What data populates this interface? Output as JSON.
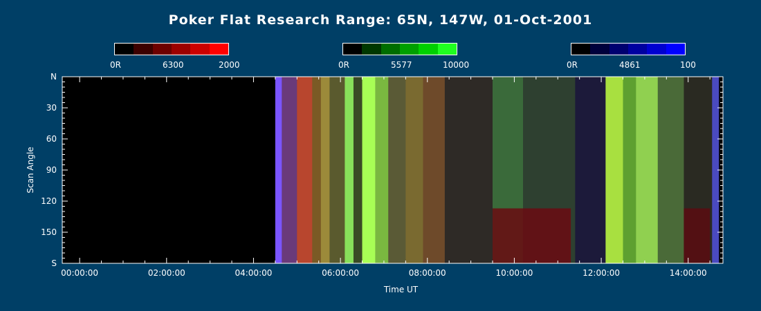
{
  "title": "Poker Flat Research Range: 65N, 147W, 01-Oct-2001",
  "colors": {
    "background": "#003f66",
    "text": "#ffffff"
  },
  "colorbars": [
    {
      "min_label": "0R",
      "wavelength_label": "6300",
      "max_label": "2000",
      "steps": [
        "#000000",
        "#3d0000",
        "#6e0000",
        "#9c0000",
        "#cc0000",
        "#ff0000"
      ]
    },
    {
      "min_label": "0R",
      "wavelength_label": "5577",
      "max_label": "10000",
      "steps": [
        "#000000",
        "#003800",
        "#006e00",
        "#00a000",
        "#00d000",
        "#20ff20"
      ]
    },
    {
      "min_label": "0R",
      "wavelength_label": "4861",
      "max_label": "100",
      "steps": [
        "#000000",
        "#00003c",
        "#000070",
        "#0000a0",
        "#0000d0",
        "#0000ff"
      ]
    }
  ],
  "chart_data": {
    "type": "heatmap",
    "title": "Poker Flat Research Range: 65N, 147W, 01-Oct-2001",
    "xlabel": "Time UT",
    "ylabel": "Scan Angle",
    "x_ticks": [
      "00:00:00",
      "02:00:00",
      "04:00:00",
      "06:00:00",
      "08:00:00",
      "10:00:00",
      "12:00:00",
      "14:00:00"
    ],
    "y_ticks": [
      "N",
      "30",
      "60",
      "90",
      "120",
      "150",
      "S"
    ],
    "xlim_hours": [
      -0.4,
      14.8
    ],
    "ylim_deg": [
      0,
      180
    ],
    "data_start_hour": 4.5,
    "data_end_hour": 14.7,
    "bands": [
      {
        "start": 4.5,
        "end": 4.65,
        "color": "#7a55ff"
      },
      {
        "start": 4.65,
        "end": 5.0,
        "color": "#6a3a7a"
      },
      {
        "start": 5.0,
        "end": 5.35,
        "color": "#b8462e"
      },
      {
        "start": 5.35,
        "end": 5.55,
        "color": "#7a5a25"
      },
      {
        "start": 5.55,
        "end": 5.75,
        "color": "#9c8a3a"
      },
      {
        "start": 5.75,
        "end": 6.1,
        "color": "#5a5a2e"
      },
      {
        "start": 6.1,
        "end": 6.3,
        "color": "#88e05a"
      },
      {
        "start": 6.3,
        "end": 6.5,
        "color": "#3a4a25"
      },
      {
        "start": 6.5,
        "end": 6.8,
        "color": "#a8ff55"
      },
      {
        "start": 6.8,
        "end": 7.1,
        "color": "#7ab840"
      },
      {
        "start": 7.1,
        "end": 7.5,
        "color": "#5a5a36"
      },
      {
        "start": 7.5,
        "end": 7.9,
        "color": "#7a6a30"
      },
      {
        "start": 7.9,
        "end": 8.4,
        "color": "#6e4a2a"
      },
      {
        "start": 8.4,
        "end": 9.5,
        "color": "#2e2a26"
      },
      {
        "start": 9.5,
        "end": 10.2,
        "color": "#3a6a3a"
      },
      {
        "start": 10.2,
        "end": 11.4,
        "color": "#2e4030"
      },
      {
        "start": 11.4,
        "end": 12.1,
        "color": "#1c1a3a"
      },
      {
        "start": 12.1,
        "end": 12.5,
        "color": "#a8e040"
      },
      {
        "start": 12.5,
        "end": 12.8,
        "color": "#5ea030"
      },
      {
        "start": 12.8,
        "end": 13.3,
        "color": "#90d050"
      },
      {
        "start": 13.3,
        "end": 13.9,
        "color": "#4a6a38"
      },
      {
        "start": 13.9,
        "end": 14.55,
        "color": "#2a2a22"
      },
      {
        "start": 14.55,
        "end": 14.7,
        "color": "#4a4ac0"
      }
    ],
    "patches": [
      {
        "start": 9.5,
        "end": 11.3,
        "angle_top": 127,
        "angle_bottom": 180,
        "color": "#6a0a12"
      },
      {
        "start": 13.9,
        "end": 14.5,
        "angle_top": 127,
        "angle_bottom": 180,
        "color": "#5a0c10"
      }
    ]
  }
}
